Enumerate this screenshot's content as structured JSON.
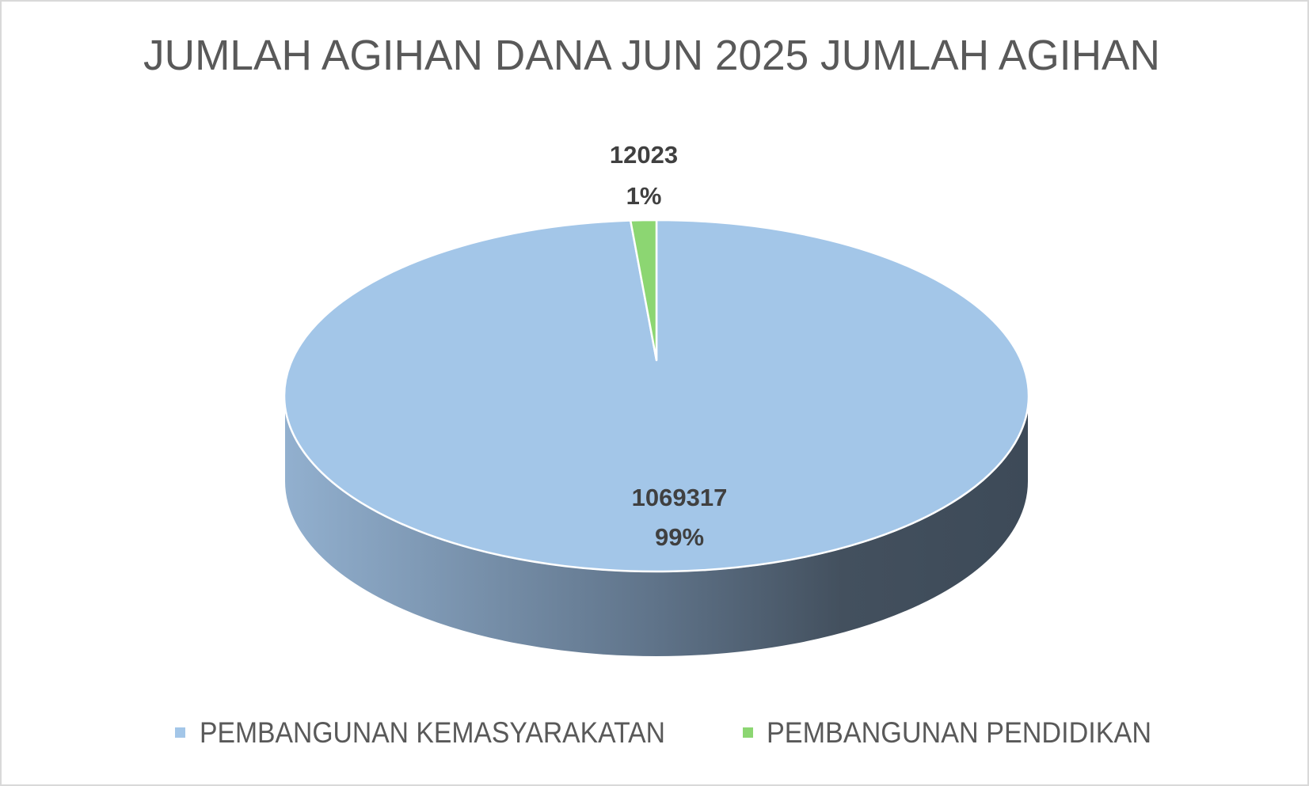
{
  "chart_data": {
    "type": "pie",
    "style": "3d",
    "title": "JUMLAH AGIHAN DANA JUN 2025 JUMLAH AGIHAN",
    "categories": [
      "PEMBANGUNAN KEMASYARAKATAN",
      "PEMBANGUNAN PENDIDIKAN"
    ],
    "values": [
      1069317,
      12023
    ],
    "percent_labels": [
      "99%",
      "1%"
    ],
    "colors": [
      "#a3c6e8",
      "#8cd672"
    ],
    "legend_position": "bottom"
  }
}
